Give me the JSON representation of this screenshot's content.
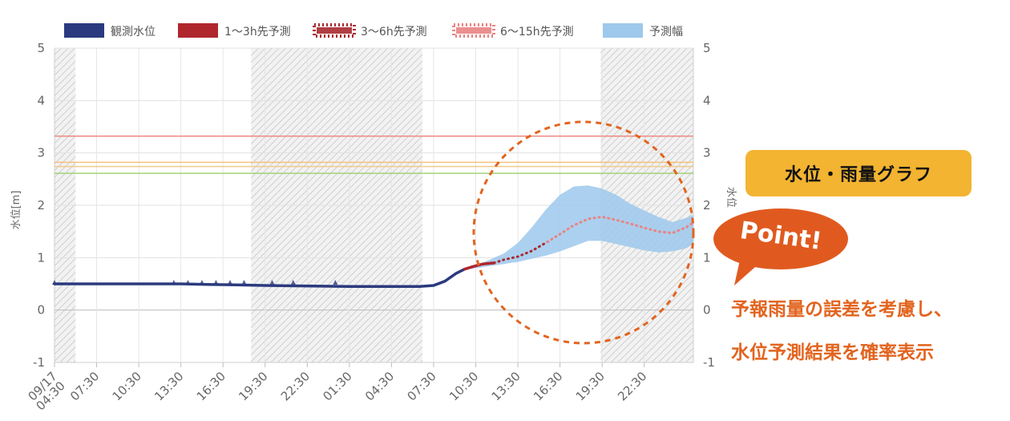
{
  "chart_data": {
    "type": "line",
    "title": "",
    "xlabel": "",
    "ylabel": "水位[m]",
    "ylabel_right": "水位",
    "ylim": [
      -1,
      5
    ],
    "y_ticks": [
      -1,
      0,
      1,
      2,
      3,
      4,
      5
    ],
    "x_hours_range": [
      0,
      45.5
    ],
    "x_tick_labels": [
      {
        "label": "09/17",
        "label2": "04:30",
        "h": 0
      },
      {
        "label": "07:30",
        "h": 3
      },
      {
        "label": "10:30",
        "h": 6
      },
      {
        "label": "13:30",
        "h": 9
      },
      {
        "label": "16:30",
        "h": 12
      },
      {
        "label": "19:30",
        "h": 15
      },
      {
        "label": "22:30",
        "h": 18
      },
      {
        "label": "01:30",
        "h": 21
      },
      {
        "label": "04:30",
        "h": 24
      },
      {
        "label": "07:30",
        "h": 27
      },
      {
        "label": "10:30",
        "h": 30
      },
      {
        "label": "13:30",
        "h": 33
      },
      {
        "label": "16:30",
        "h": 36
      },
      {
        "label": "19:30",
        "h": 39
      },
      {
        "label": "22:30",
        "h": 42
      }
    ],
    "night_bands": [
      [
        0,
        1.5
      ],
      [
        14,
        26.2
      ],
      [
        38.9,
        45.5
      ]
    ],
    "threshold_lines": [
      {
        "value": 3.32,
        "color": "#f08a80"
      },
      {
        "value": 2.82,
        "color": "#f5c07a"
      },
      {
        "value": 2.74,
        "color": "#f2c98a"
      },
      {
        "value": 2.61,
        "color": "#9fd37a"
      }
    ],
    "series": [
      {
        "name": "観測水位",
        "color": "#2b3a7e",
        "style": "solid",
        "points": [
          [
            0,
            0.5
          ],
          [
            3,
            0.5
          ],
          [
            6,
            0.5
          ],
          [
            9,
            0.5
          ],
          [
            11,
            0.49
          ],
          [
            13,
            0.48
          ],
          [
            15,
            0.47
          ],
          [
            18,
            0.46
          ],
          [
            21,
            0.45
          ],
          [
            24,
            0.45
          ],
          [
            26,
            0.45
          ],
          [
            27,
            0.47
          ],
          [
            27.8,
            0.55
          ],
          [
            28.6,
            0.7
          ],
          [
            29.2,
            0.78
          ]
        ]
      },
      {
        "name": "1〜3h先予測",
        "color": "#b0262d",
        "style": "solid",
        "points": [
          [
            29.2,
            0.78
          ],
          [
            29.8,
            0.83
          ],
          [
            30.5,
            0.88
          ],
          [
            31.3,
            0.9
          ]
        ]
      },
      {
        "name": "3〜6h先予測",
        "color": "#a72a2f",
        "style": "dotted",
        "points": [
          [
            31.3,
            0.9
          ],
          [
            32,
            0.96
          ],
          [
            33,
            1.02
          ],
          [
            34,
            1.13
          ],
          [
            35.1,
            1.3
          ]
        ]
      },
      {
        "name": "6〜15h先予測",
        "color": "#e98383",
        "style": "dotted",
        "points": [
          [
            35.1,
            1.3
          ],
          [
            36,
            1.45
          ],
          [
            37,
            1.62
          ],
          [
            38,
            1.74
          ],
          [
            39,
            1.78
          ],
          [
            40,
            1.72
          ],
          [
            41,
            1.65
          ],
          [
            42,
            1.57
          ],
          [
            43,
            1.5
          ],
          [
            44,
            1.47
          ],
          [
            45,
            1.58
          ],
          [
            45.5,
            1.67
          ]
        ]
      }
    ],
    "band": {
      "name": "予測幅",
      "color": "#9ec8ec",
      "upper": [
        [
          29.5,
          0.8
        ],
        [
          31,
          0.96
        ],
        [
          32,
          1.08
        ],
        [
          33,
          1.28
        ],
        [
          34,
          1.58
        ],
        [
          35,
          1.92
        ],
        [
          36,
          2.2
        ],
        [
          37,
          2.36
        ],
        [
          38,
          2.38
        ],
        [
          39,
          2.32
        ],
        [
          40,
          2.2
        ],
        [
          41,
          2.03
        ],
        [
          42,
          1.9
        ],
        [
          43,
          1.78
        ],
        [
          44,
          1.68
        ],
        [
          45,
          1.76
        ],
        [
          45.5,
          1.82
        ]
      ],
      "lower": [
        [
          45.5,
          1.26
        ],
        [
          45,
          1.18
        ],
        [
          44,
          1.12
        ],
        [
          43,
          1.1
        ],
        [
          42,
          1.14
        ],
        [
          41,
          1.2
        ],
        [
          40,
          1.26
        ],
        [
          39,
          1.32
        ],
        [
          38,
          1.32
        ],
        [
          37,
          1.22
        ],
        [
          36,
          1.12
        ],
        [
          35,
          1.04
        ],
        [
          34,
          0.98
        ],
        [
          33,
          0.92
        ],
        [
          32,
          0.88
        ],
        [
          31,
          0.84
        ],
        [
          29.5,
          0.78
        ]
      ]
    },
    "legend": [
      {
        "label": "観測水位",
        "color": "#2b3a7e",
        "kind": "solid"
      },
      {
        "label": "1〜3h先予測",
        "color": "#b0262d",
        "kind": "solid"
      },
      {
        "label": "3〜6h先予測",
        "color": "#a72a2f",
        "kind": "dotted"
      },
      {
        "label": "6〜15h先予測",
        "color": "#e98383",
        "kind": "dotted"
      },
      {
        "label": "予測幅",
        "color": "#9ec8ec",
        "kind": "fill"
      }
    ],
    "legend_position": "top"
  },
  "badge": {
    "label": "水位・雨量グラフ",
    "color": "#f2b431"
  },
  "callout": {
    "label": "Point!",
    "color": "#e05a1f"
  },
  "notes": {
    "line1": "予報雨量の誤差を考慮し、",
    "line2": "水位予測結果を確率表示",
    "color": "#e2641f"
  }
}
